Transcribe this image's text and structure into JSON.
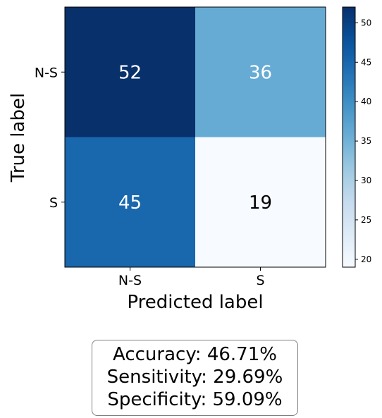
{
  "chart_data": {
    "type": "heatmap",
    "rows": [
      "N-S",
      "S"
    ],
    "columns": [
      "N-S",
      "S"
    ],
    "values": [
      [
        52,
        36
      ],
      [
        45,
        19
      ]
    ],
    "xlabel": "Predicted label",
    "ylabel": "True label",
    "colorbar": {
      "min": 19,
      "max": 52,
      "ticks": [
        20,
        25,
        30,
        35,
        40,
        45,
        50
      ],
      "colormap": "Blues"
    },
    "cell_text_colors": [
      [
        "#ffffff",
        "#ffffff"
      ],
      [
        "#ffffff",
        "#000000"
      ]
    ]
  },
  "metrics": {
    "accuracy": "Accuracy: 46.71%",
    "sensitivity": "Sensitivity: 29.69%",
    "specificity": "Specificity: 59.09%"
  }
}
